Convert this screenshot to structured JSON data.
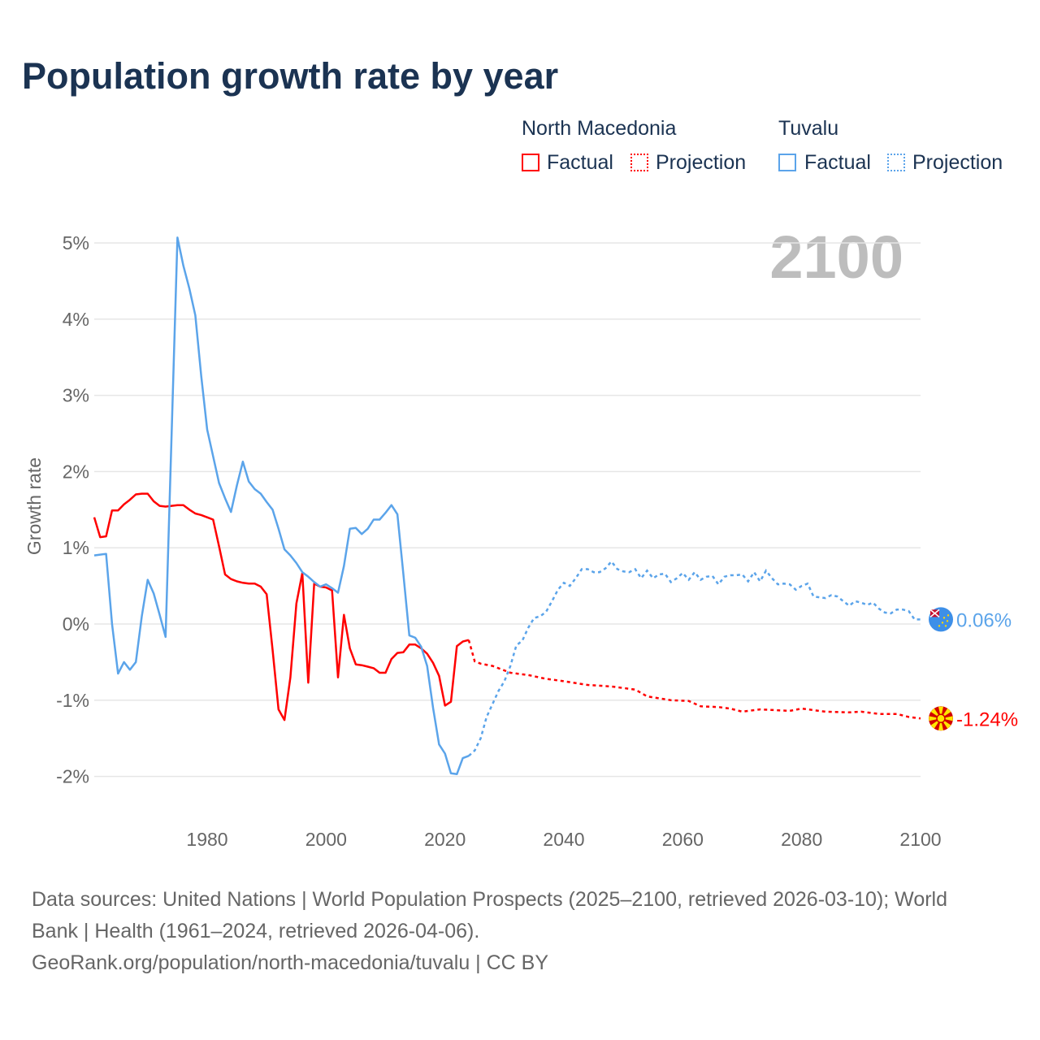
{
  "chart_data": {
    "type": "line",
    "title": "Population growth rate by year",
    "xlabel": "",
    "ylabel": "Growth rate",
    "xlim": [
      1961,
      2100
    ],
    "ylim": [
      -2.5,
      5
    ],
    "yticks": [
      5,
      4,
      3,
      2,
      1,
      0,
      -1,
      -2
    ],
    "ytick_labels": [
      "5%",
      "4%",
      "3%",
      "2%",
      "1%",
      "0%",
      "-1%",
      "-2%"
    ],
    "xticks": [
      1980,
      2000,
      2020,
      2040,
      2060,
      2080,
      2100
    ],
    "xtick_labels": [
      "1980",
      "2000",
      "2020",
      "2040",
      "2060",
      "2080",
      "2100"
    ],
    "grid": true,
    "current_year_label": "2100",
    "legend": {
      "placement": "top-right",
      "groups": [
        {
          "name": "North Macedonia",
          "factual": "Factual",
          "projection": "Projection"
        },
        {
          "name": "Tuvalu",
          "factual": "Factual",
          "projection": "Projection"
        }
      ]
    },
    "series": [
      {
        "name": "North Macedonia",
        "color": "#ff0000",
        "end_label": "-1.24%",
        "flag": "north-macedonia",
        "factual": [
          [
            1961,
            1.4
          ],
          [
            1962,
            1.14
          ],
          [
            1963,
            1.15
          ],
          [
            1964,
            1.49
          ],
          [
            1965,
            1.49
          ],
          [
            1966,
            1.57
          ],
          [
            1967,
            1.63
          ],
          [
            1968,
            1.7
          ],
          [
            1969,
            1.71
          ],
          [
            1970,
            1.71
          ],
          [
            1971,
            1.61
          ],
          [
            1972,
            1.55
          ],
          [
            1973,
            1.54
          ],
          [
            1974,
            1.55
          ],
          [
            1975,
            1.56
          ],
          [
            1976,
            1.56
          ],
          [
            1977,
            1.5
          ],
          [
            1978,
            1.45
          ],
          [
            1979,
            1.43
          ],
          [
            1980,
            1.4
          ],
          [
            1981,
            1.37
          ],
          [
            1982,
            1.02
          ],
          [
            1983,
            0.65
          ],
          [
            1984,
            0.59
          ],
          [
            1985,
            0.56
          ],
          [
            1986,
            0.54
          ],
          [
            1987,
            0.53
          ],
          [
            1988,
            0.53
          ],
          [
            1989,
            0.49
          ],
          [
            1990,
            0.39
          ],
          [
            1991,
            -0.34
          ],
          [
            1992,
            -1.12
          ],
          [
            1993,
            -1.26
          ],
          [
            1994,
            -0.7
          ],
          [
            1995,
            0.27
          ],
          [
            1996,
            0.67
          ],
          [
            1997,
            -0.77
          ],
          [
            1998,
            0.53
          ],
          [
            1999,
            0.49
          ],
          [
            2000,
            0.48
          ],
          [
            2001,
            0.44
          ],
          [
            2002,
            -0.7
          ],
          [
            2003,
            0.12
          ],
          [
            2004,
            -0.32
          ],
          [
            2005,
            -0.53
          ],
          [
            2006,
            -0.54
          ],
          [
            2007,
            -0.56
          ],
          [
            2008,
            -0.58
          ],
          [
            2009,
            -0.64
          ],
          [
            2010,
            -0.64
          ],
          [
            2011,
            -0.46
          ],
          [
            2012,
            -0.38
          ],
          [
            2013,
            -0.37
          ],
          [
            2014,
            -0.27
          ],
          [
            2015,
            -0.27
          ],
          [
            2016,
            -0.32
          ],
          [
            2017,
            -0.39
          ],
          [
            2018,
            -0.51
          ],
          [
            2019,
            -0.68
          ],
          [
            2020,
            -1.07
          ],
          [
            2021,
            -1.02
          ],
          [
            2022,
            -0.29
          ],
          [
            2023,
            -0.23
          ],
          [
            2024,
            -0.21
          ]
        ],
        "projection": [
          [
            2024,
            -0.21
          ],
          [
            2025,
            -0.49
          ],
          [
            2026,
            -0.52
          ],
          [
            2028,
            -0.55
          ],
          [
            2031,
            -0.64
          ],
          [
            2034,
            -0.67
          ],
          [
            2037,
            -0.72
          ],
          [
            2040,
            -0.75
          ],
          [
            2044,
            -0.8
          ],
          [
            2048,
            -0.82
          ],
          [
            2052,
            -0.86
          ],
          [
            2054,
            -0.95
          ],
          [
            2058,
            -1.0
          ],
          [
            2061,
            -1.01
          ],
          [
            2063,
            -1.08
          ],
          [
            2066,
            -1.09
          ],
          [
            2068,
            -1.11
          ],
          [
            2070,
            -1.15
          ],
          [
            2073,
            -1.12
          ],
          [
            2078,
            -1.14
          ],
          [
            2080,
            -1.11
          ],
          [
            2084,
            -1.15
          ],
          [
            2088,
            -1.16
          ],
          [
            2090,
            -1.15
          ],
          [
            2093,
            -1.18
          ],
          [
            2096,
            -1.18
          ],
          [
            2098,
            -1.22
          ],
          [
            2100,
            -1.24
          ]
        ]
      },
      {
        "name": "Tuvalu",
        "color": "#5ba4ea",
        "end_label": "0.06%",
        "flag": "tuvalu",
        "factual": [
          [
            1961,
            0.9
          ],
          [
            1962,
            0.91
          ],
          [
            1963,
            0.92
          ],
          [
            1964,
            0.0
          ],
          [
            1965,
            -0.65
          ],
          [
            1966,
            -0.5
          ],
          [
            1967,
            -0.6
          ],
          [
            1968,
            -0.5
          ],
          [
            1969,
            0.1
          ],
          [
            1970,
            0.58
          ],
          [
            1971,
            0.4
          ],
          [
            1972,
            0.12
          ],
          [
            1973,
            -0.17
          ],
          [
            1975,
            5.07
          ],
          [
            1976,
            4.7
          ],
          [
            1977,
            4.4
          ],
          [
            1978,
            4.05
          ],
          [
            1979,
            3.25
          ],
          [
            1980,
            2.55
          ],
          [
            1981,
            2.2
          ],
          [
            1982,
            1.85
          ],
          [
            1983,
            1.65
          ],
          [
            1984,
            1.47
          ],
          [
            1985,
            1.82
          ],
          [
            1986,
            2.13
          ],
          [
            1987,
            1.87
          ],
          [
            1988,
            1.77
          ],
          [
            1989,
            1.71
          ],
          [
            1990,
            1.6
          ],
          [
            1991,
            1.5
          ],
          [
            1992,
            1.25
          ],
          [
            1993,
            0.98
          ],
          [
            1994,
            0.9
          ],
          [
            1995,
            0.8
          ],
          [
            1996,
            0.68
          ],
          [
            1997,
            0.62
          ],
          [
            1998,
            0.55
          ],
          [
            1999,
            0.49
          ],
          [
            2000,
            0.52
          ],
          [
            2001,
            0.47
          ],
          [
            2002,
            0.41
          ],
          [
            2003,
            0.76
          ],
          [
            2004,
            1.25
          ],
          [
            2005,
            1.26
          ],
          [
            2006,
            1.18
          ],
          [
            2007,
            1.25
          ],
          [
            2008,
            1.37
          ],
          [
            2009,
            1.37
          ],
          [
            2010,
            1.46
          ],
          [
            2011,
            1.56
          ],
          [
            2012,
            1.44
          ],
          [
            2013,
            0.65
          ],
          [
            2014,
            -0.15
          ],
          [
            2015,
            -0.18
          ],
          [
            2016,
            -0.3
          ],
          [
            2017,
            -0.55
          ],
          [
            2018,
            -1.1
          ],
          [
            2019,
            -1.58
          ],
          [
            2020,
            -1.7
          ],
          [
            2021,
            -1.96
          ],
          [
            2022,
            -1.97
          ],
          [
            2023,
            -1.76
          ],
          [
            2024,
            -1.73
          ]
        ],
        "projection": [
          [
            2024,
            -1.73
          ],
          [
            2025,
            -1.66
          ],
          [
            2026,
            -1.5
          ],
          [
            2027,
            -1.22
          ],
          [
            2028,
            -1.05
          ],
          [
            2029,
            -0.88
          ],
          [
            2030,
            -0.75
          ],
          [
            2031,
            -0.55
          ],
          [
            2032,
            -0.28
          ],
          [
            2033,
            -0.22
          ],
          [
            2034,
            -0.05
          ],
          [
            2035,
            0.08
          ],
          [
            2036,
            0.1
          ],
          [
            2037,
            0.16
          ],
          [
            2038,
            0.3
          ],
          [
            2039,
            0.45
          ],
          [
            2040,
            0.54
          ],
          [
            2041,
            0.5
          ],
          [
            2042,
            0.6
          ],
          [
            2043,
            0.72
          ],
          [
            2044,
            0.72
          ],
          [
            2045,
            0.68
          ],
          [
            2046,
            0.68
          ],
          [
            2047,
            0.73
          ],
          [
            2048,
            0.82
          ],
          [
            2049,
            0.72
          ],
          [
            2050,
            0.69
          ],
          [
            2051,
            0.68
          ],
          [
            2052,
            0.72
          ],
          [
            2053,
            0.6
          ],
          [
            2054,
            0.7
          ],
          [
            2055,
            0.6
          ],
          [
            2056,
            0.65
          ],
          [
            2057,
            0.66
          ],
          [
            2058,
            0.55
          ],
          [
            2059,
            0.6
          ],
          [
            2060,
            0.67
          ],
          [
            2061,
            0.58
          ],
          [
            2062,
            0.68
          ],
          [
            2063,
            0.58
          ],
          [
            2064,
            0.62
          ],
          [
            2065,
            0.63
          ],
          [
            2066,
            0.52
          ],
          [
            2067,
            0.62
          ],
          [
            2068,
            0.64
          ],
          [
            2069,
            0.64
          ],
          [
            2070,
            0.65
          ],
          [
            2071,
            0.56
          ],
          [
            2072,
            0.68
          ],
          [
            2073,
            0.56
          ],
          [
            2074,
            0.7
          ],
          [
            2075,
            0.6
          ],
          [
            2076,
            0.52
          ],
          [
            2077,
            0.53
          ],
          [
            2078,
            0.52
          ],
          [
            2079,
            0.45
          ],
          [
            2080,
            0.5
          ],
          [
            2081,
            0.53
          ],
          [
            2082,
            0.36
          ],
          [
            2083,
            0.35
          ],
          [
            2084,
            0.34
          ],
          [
            2085,
            0.38
          ],
          [
            2086,
            0.36
          ],
          [
            2087,
            0.3
          ],
          [
            2088,
            0.24
          ],
          [
            2089,
            0.3
          ],
          [
            2090,
            0.28
          ],
          [
            2091,
            0.25
          ],
          [
            2092,
            0.28
          ],
          [
            2093,
            0.2
          ],
          [
            2094,
            0.15
          ],
          [
            2095,
            0.14
          ],
          [
            2096,
            0.19
          ],
          [
            2097,
            0.19
          ],
          [
            2098,
            0.17
          ],
          [
            2099,
            0.06
          ],
          [
            2100,
            0.06
          ]
        ]
      }
    ]
  },
  "footer": {
    "line1": "Data sources: United Nations | World Population Prospects (2025–2100, retrieved 2026-03-10); World",
    "line2": "Bank | Health (1961–2024, retrieved 2026-04-06).",
    "line3": "GeoRank.org/population/north-macedonia/tuvalu | CC BY"
  }
}
